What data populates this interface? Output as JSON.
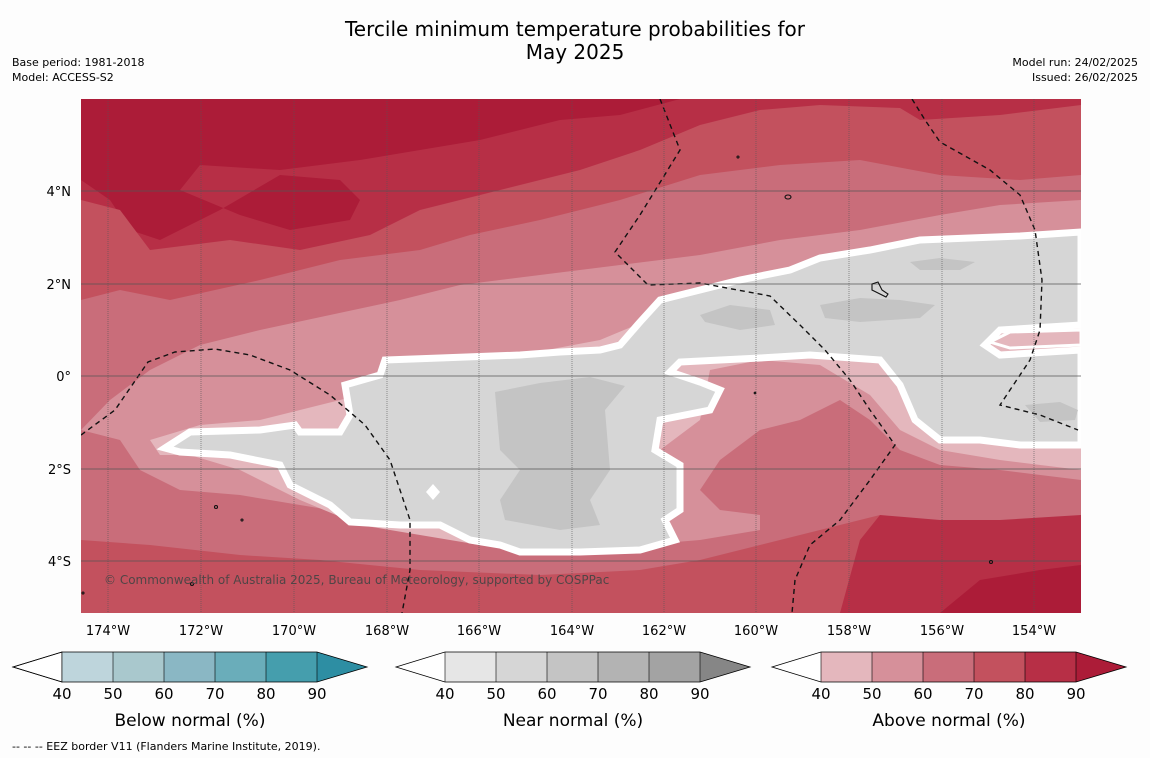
{
  "title_line1": "Tercile minimum temperature probabilities for",
  "title_line2": "May 2025",
  "meta_left": {
    "base_period": "Base period: 1981-2018",
    "model": "Model: ACCESS-S2"
  },
  "meta_right": {
    "model_run": "Model run: 24/02/2025",
    "issued": "Issued: 26/02/2025"
  },
  "copyright": "© Commonwealth of Australia 2025, Bureau of Meteorology, supported by COSPPac",
  "lat_labels": [
    "4°N",
    "2°N",
    "0°",
    "2°S",
    "4°S"
  ],
  "lon_labels": [
    "174°W",
    "172°W",
    "170°W",
    "168°W",
    "166°W",
    "164°W",
    "162°W",
    "160°W",
    "158°W",
    "156°W",
    "154°W"
  ],
  "colorbars": [
    {
      "title": "Below normal (%)",
      "ticks": [
        "40",
        "50",
        "60",
        "70",
        "80",
        "90"
      ],
      "colors": [
        "#bed5dc",
        "#a9c8cd",
        "#8ab7c4",
        "#6aadba",
        "#459ead",
        "#2d8ea3"
      ]
    },
    {
      "title": "Near normal (%)",
      "ticks": [
        "40",
        "50",
        "60",
        "70",
        "80",
        "90"
      ],
      "colors": [
        "#e6e6e6",
        "#d6d6d6",
        "#c4c4c4",
        "#b3b3b3",
        "#a3a3a3",
        "#868686"
      ]
    },
    {
      "title": "Above normal (%)",
      "ticks": [
        "40",
        "50",
        "60",
        "70",
        "80",
        "90"
      ],
      "colors": [
        "#e4b7bd",
        "#d6909a",
        "#c96d7a",
        "#c3515e",
        "#b72f46",
        "#ac1c38"
      ]
    }
  ],
  "footnote": "--  --  -- EEZ border V11 (Flanders Marine Institute, 2019)."
}
